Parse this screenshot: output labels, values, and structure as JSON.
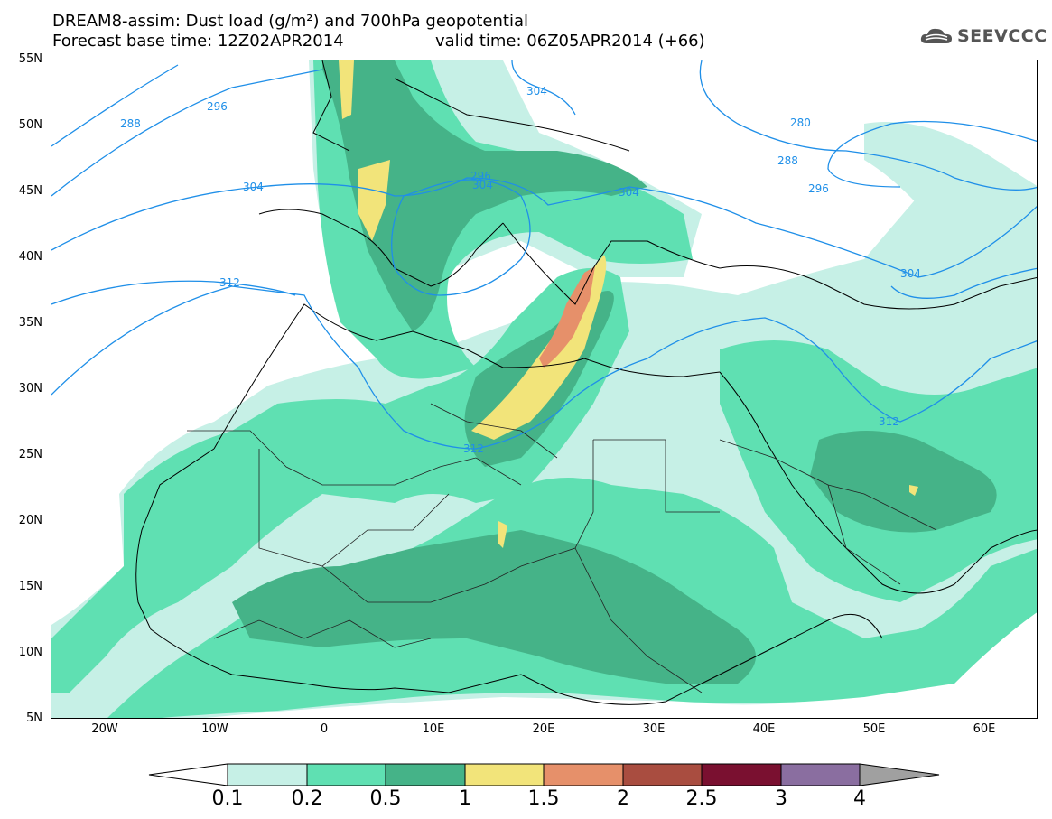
{
  "title": {
    "line1": "DREAM8-assim: Dust load (g/m²) and 700hPa geopotential",
    "line2_left": "Forecast base time: 12Z02APR2014",
    "line2_right": "valid time: 06Z05APR2014 (+66)"
  },
  "logo": {
    "text": "SEEVCCC",
    "icon": "cloud-icon"
  },
  "axes": {
    "lat_labels": [
      "55N",
      "50N",
      "45N",
      "40N",
      "35N",
      "30N",
      "25N",
      "20N",
      "15N",
      "10N",
      "5N"
    ],
    "lon_labels": [
      "20W",
      "10W",
      "0",
      "10E",
      "20E",
      "30E",
      "40E",
      "50E",
      "60E"
    ]
  },
  "contour_labels": [
    "280",
    "288",
    "288",
    "296",
    "296",
    "296",
    "304",
    "304",
    "304",
    "304",
    "304",
    "312",
    "312",
    "312"
  ],
  "colorbar": {
    "ticks": [
      "0.1",
      "0.2",
      "0.5",
      "1",
      "1.5",
      "2",
      "2.5",
      "3",
      "4"
    ],
    "colors": [
      "#c6f0e6",
      "#5fe0b2",
      "#45b388",
      "#f2e47a",
      "#e6906a",
      "#a94d40",
      "#7a1030",
      "#8a6ea0"
    ]
  }
}
